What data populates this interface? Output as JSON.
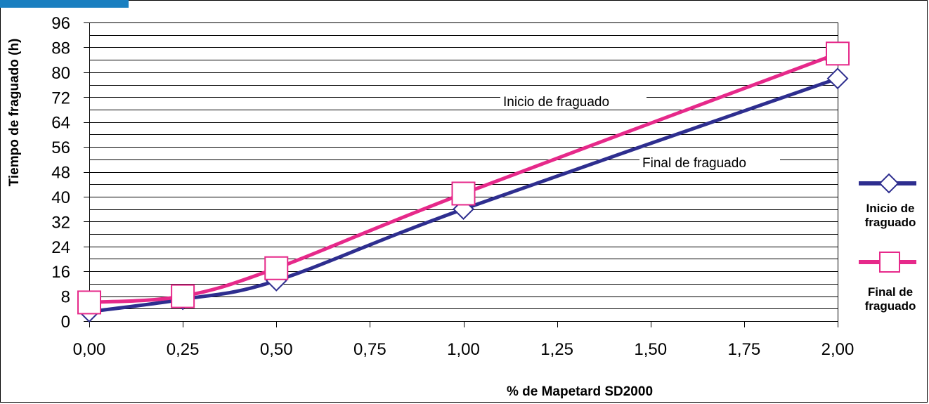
{
  "chart_data": {
    "type": "line",
    "categories": [
      "0,00",
      "0,25",
      "0,50",
      "1,00",
      "2,00"
    ],
    "tick_labels_x": [
      "0,00",
      "0,25",
      "0,50",
      "0,75",
      "1,00",
      "1,25",
      "1,50",
      "1,75",
      "2,00"
    ],
    "tick_labels_y": [
      "0",
      "8",
      "16",
      "24",
      "32",
      "40",
      "48",
      "56",
      "64",
      "72",
      "80",
      "88",
      "96"
    ],
    "ylim": [
      0,
      96
    ],
    "grid": "horizontal every 4",
    "xlabel": "% de Mapetard SD2000",
    "ylabel": "Tiempo de fraguado (h)",
    "series": [
      {
        "name": "Inicio de fraguado",
        "marker": "diamond",
        "color": "#2e2e8f",
        "values": [
          3,
          7,
          13,
          36,
          78
        ]
      },
      {
        "name": "Final de fraguado",
        "marker": "square",
        "color": "#e6298a",
        "values": [
          6,
          8,
          17,
          41,
          86
        ]
      }
    ],
    "annotations": [
      "Inicio de fraguado",
      "Final de fraguado"
    ],
    "legend": {
      "position": "right",
      "items": [
        {
          "label_line1": "Inicio de",
          "label_line2": "fraguado"
        },
        {
          "label_line1": "Final de",
          "label_line2": "fraguado"
        }
      ]
    }
  }
}
